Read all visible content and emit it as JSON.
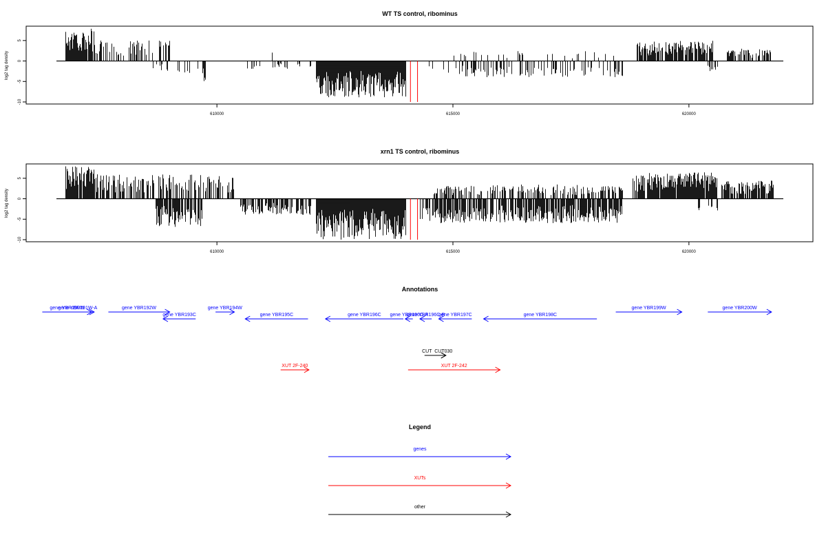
{
  "colors": {
    "genes": "#0000ff",
    "xuts": "#ff0000",
    "other": "#000000",
    "cutoff": "#ff0000"
  },
  "chart_data": [
    {
      "type": "bar",
      "title": "WT TS control, ribominus",
      "ylabel": "log2 tag density",
      "xlim": [
        606600,
        622000
      ],
      "ylim": [
        -10,
        8
      ],
      "xticks": [
        610000,
        615000,
        620000
      ],
      "yticks": [
        -10,
        -5,
        0,
        5
      ],
      "vertical_lines": [
        614100,
        614250
      ],
      "density_envelope": [
        {
          "range": [
            606800,
            607400
          ],
          "sign": 1,
          "max": 8,
          "fill": 0.9
        },
        {
          "range": [
            607400,
            609000
          ],
          "sign": 1,
          "max": 5,
          "fill": 0.35
        },
        {
          "range": [
            608600,
            609700
          ],
          "sign": -1,
          "max": 3,
          "fill": 0.2
        },
        {
          "range": [
            609700,
            609750
          ],
          "sign": -1,
          "max": 5.5,
          "fill": 1
        },
        {
          "range": [
            610500,
            611300
          ],
          "sign": 1,
          "max": 2.5,
          "fill": 0.05
        },
        {
          "range": [
            610600,
            612000
          ],
          "sign": -1,
          "max": 2,
          "fill": 0.15
        },
        {
          "range": [
            612100,
            614000
          ],
          "sign": -1,
          "max": 9,
          "fill": 1
        },
        {
          "range": [
            614400,
            615000
          ],
          "sign": -1,
          "max": 3,
          "fill": 0.1
        },
        {
          "range": [
            615000,
            618500
          ],
          "sign": 1,
          "max": 2.5,
          "fill": 0.12
        },
        {
          "range": [
            615000,
            618600
          ],
          "sign": -1,
          "max": 4,
          "fill": 0.3
        },
        {
          "range": [
            618900,
            620500
          ],
          "sign": 1,
          "max": 5,
          "fill": 0.75
        },
        {
          "range": [
            620400,
            620600
          ],
          "sign": -1,
          "max": 2.5,
          "fill": 0.3
        },
        {
          "range": [
            620800,
            621800
          ],
          "sign": 1,
          "max": 3,
          "fill": 0.55
        }
      ]
    },
    {
      "type": "bar",
      "title": "xrn1 TS control, ribominus",
      "ylabel": "log2 tag density",
      "xlim": [
        606600,
        622000
      ],
      "ylim": [
        -10,
        8
      ],
      "xticks": [
        610000,
        615000,
        620000
      ],
      "yticks": [
        -10,
        -5,
        0,
        5
      ],
      "vertical_lines": [
        614100,
        614250
      ],
      "density_envelope": [
        {
          "range": [
            606800,
            607400
          ],
          "sign": 1,
          "max": 8,
          "fill": 0.95
        },
        {
          "range": [
            607400,
            610400
          ],
          "sign": 1,
          "max": 6,
          "fill": 0.55
        },
        {
          "range": [
            608700,
            609700
          ],
          "sign": -1,
          "max": 7,
          "fill": 0.8
        },
        {
          "range": [
            610500,
            612000
          ],
          "sign": -1,
          "max": 4,
          "fill": 0.7
        },
        {
          "range": [
            612100,
            614000
          ],
          "sign": -1,
          "max": 10,
          "fill": 1
        },
        {
          "range": [
            614600,
            618600
          ],
          "sign": 1,
          "max": 3.5,
          "fill": 0.5
        },
        {
          "range": [
            614300,
            618600
          ],
          "sign": -1,
          "max": 6,
          "fill": 0.75
        },
        {
          "range": [
            618800,
            620600
          ],
          "sign": 1,
          "max": 6.5,
          "fill": 0.95
        },
        {
          "range": [
            620200,
            620600
          ],
          "sign": -1,
          "max": 3,
          "fill": 0.3
        },
        {
          "range": [
            620700,
            621800
          ],
          "sign": 1,
          "max": 4.5,
          "fill": 0.8
        }
      ]
    }
  ],
  "annotations": {
    "title": "Annotations",
    "features": [
      {
        "label": "gene YBR190W",
        "cls": "genes",
        "row": 0,
        "dir": 1,
        "start": 606300,
        "end": 607350
      },
      {
        "label": "gene YBR191W-A",
        "cls": "genes",
        "row": 0,
        "dir": 1,
        "start": 606700,
        "end": 607400
      },
      {
        "label": "gene YBR192W",
        "cls": "genes",
        "row": 0,
        "dir": 1,
        "start": 607700,
        "end": 609000
      },
      {
        "label": "gene YBR193C",
        "cls": "genes",
        "row": 1,
        "dir": -1,
        "start": 608860,
        "end": 609550
      },
      {
        "label": "gene YBR194W",
        "cls": "genes",
        "row": 0,
        "dir": 1,
        "start": 609970,
        "end": 610370
      },
      {
        "label": "gene YBR195C",
        "cls": "genes",
        "row": 1,
        "dir": -1,
        "start": 610600,
        "end": 611930
      },
      {
        "label": "gene YBR196C",
        "cls": "genes",
        "row": 1,
        "dir": -1,
        "start": 612300,
        "end": 613950
      },
      {
        "label": "gene YBR196C-A",
        "cls": "genes",
        "row": 1,
        "dir": -1,
        "start": 613990,
        "end": 614150
      },
      {
        "label": "gene YBR196C-B",
        "cls": "genes",
        "row": 1,
        "dir": -1,
        "start": 614300,
        "end": 614550
      },
      {
        "label": "gene YBR197C",
        "cls": "genes",
        "row": 1,
        "dir": -1,
        "start": 614700,
        "end": 615400
      },
      {
        "label": "gene YBR198C",
        "cls": "genes",
        "row": 1,
        "dir": -1,
        "start": 615650,
        "end": 618050
      },
      {
        "label": "gene YBR199W",
        "cls": "genes",
        "row": 0,
        "dir": 1,
        "start": 618450,
        "end": 619850
      },
      {
        "label": "gene YBR200W",
        "cls": "genes",
        "row": 0,
        "dir": 1,
        "start": 620400,
        "end": 621750
      },
      {
        "label": "CUT",
        "cls": "other",
        "row": 2,
        "dir": 1,
        "start": 614400,
        "end": 614850
      },
      {
        "label": "CUT030",
        "cls": "other",
        "row": 2,
        "dir": 1,
        "start": 614400,
        "end": 614850
      },
      {
        "label": "XUT 2F-240",
        "cls": "xuts",
        "row": 3,
        "dir": 1,
        "start": 611350,
        "end": 611950
      },
      {
        "label": "XUT 2F-242",
        "cls": "xuts",
        "row": 3,
        "dir": 1,
        "start": 614050,
        "end": 616000
      }
    ]
  },
  "legend": {
    "title": "Legend",
    "items": [
      {
        "label": "genes",
        "cls": "genes"
      },
      {
        "label": "XUTs",
        "cls": "xuts"
      },
      {
        "label": "other",
        "cls": "other"
      }
    ]
  }
}
